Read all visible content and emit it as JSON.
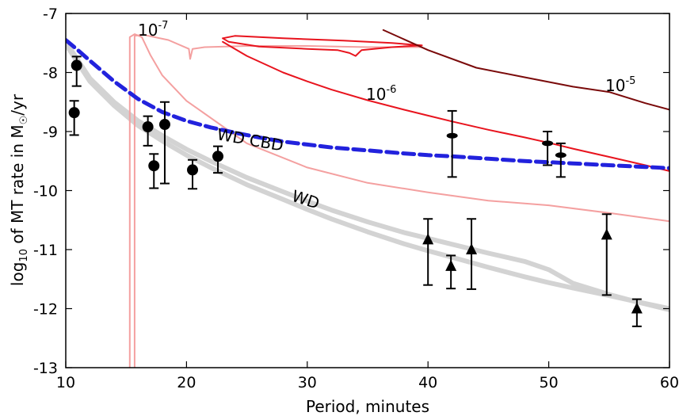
{
  "chart_data": {
    "type": "scatter",
    "xlabel": "Period, minutes",
    "ylabel": {
      "pre": "log",
      "sub": "10",
      "post": " of MT rate in M",
      "solar_symbol": "☉",
      "unit": "/yr"
    },
    "xlim": [
      10,
      60
    ],
    "ylim": [
      -13,
      -7
    ],
    "x_ticks": [
      10,
      20,
      30,
      40,
      50,
      60
    ],
    "y_ticks": [
      -13,
      -12,
      -11,
      -10,
      -9,
      -8,
      -7
    ],
    "grid": false,
    "colors": {
      "axes": "#000000",
      "wd": "#d3d3d3",
      "wd_cbd": "#2222dd",
      "rate_1e7": "#f4a0a0",
      "rate_1e6": "#e8141e",
      "rate_1e5": "#7a0a0a",
      "points": "#000000"
    },
    "curve_labels": {
      "wd": "WD",
      "wd_cbd": "WD CBD",
      "rate_1e7": {
        "base": "10",
        "exp": "-7"
      },
      "rate_1e6": {
        "base": "10",
        "exp": "-6"
      },
      "rate_1e5": {
        "base": "10",
        "exp": "-5"
      }
    },
    "series": [
      {
        "key": "wd_1",
        "style": "thick-gray",
        "x": [
          10,
          12,
          14,
          16,
          18,
          20,
          22,
          25,
          28,
          30,
          32,
          35,
          38,
          40,
          42,
          45,
          48,
          50,
          52,
          55,
          57,
          60
        ],
        "y": [
          -7.48,
          -8.1,
          -8.5,
          -8.82,
          -9.07,
          -9.3,
          -9.5,
          -9.78,
          -10.02,
          -10.18,
          -10.33,
          -10.53,
          -10.71,
          -10.81,
          -10.91,
          -11.06,
          -11.2,
          -11.34,
          -11.57,
          -11.76,
          -11.87,
          -12.02
        ]
      },
      {
        "key": "wd_2",
        "style": "thick-gray",
        "x": [
          10,
          12,
          14,
          16,
          18,
          20,
          22,
          25,
          28,
          30,
          32,
          35,
          38,
          40,
          42,
          45,
          48,
          50,
          52,
          55,
          57,
          60
        ],
        "y": [
          -7.52,
          -8.15,
          -8.56,
          -8.9,
          -9.16,
          -9.4,
          -9.61,
          -9.9,
          -10.15,
          -10.32,
          -10.48,
          -10.7,
          -10.9,
          -11.02,
          -11.13,
          -11.3,
          -11.46,
          -11.56,
          -11.65,
          -11.78,
          -11.87,
          -12.0
        ]
      },
      {
        "key": "wd_cbd",
        "style": "dashed-blue",
        "x": [
          10,
          11,
          12,
          14,
          16,
          18,
          20,
          22,
          24,
          26,
          28,
          30,
          32,
          35,
          38,
          40,
          42,
          45,
          48,
          50,
          52,
          55,
          58,
          60
        ],
        "y": [
          -7.45,
          -7.62,
          -7.8,
          -8.15,
          -8.45,
          -8.67,
          -8.82,
          -8.93,
          -9.02,
          -9.1,
          -9.17,
          -9.22,
          -9.27,
          -9.32,
          -9.37,
          -9.4,
          -9.42,
          -9.46,
          -9.5,
          -9.52,
          -9.54,
          -9.57,
          -9.6,
          -9.62
        ]
      },
      {
        "key": "rate_1e6",
        "style": "red",
        "x": [
          23,
          25,
          28,
          30,
          32,
          35,
          38,
          40,
          42,
          45,
          48,
          50,
          52,
          55,
          58,
          60
        ],
        "y": [
          -7.48,
          -7.72,
          -8.0,
          -8.15,
          -8.29,
          -8.47,
          -8.63,
          -8.73,
          -8.83,
          -8.97,
          -9.1,
          -9.19,
          -9.29,
          -9.43,
          -9.57,
          -9.67
        ]
      },
      {
        "key": "rate_1e6_loop",
        "style": "red",
        "x": [
          23,
          23.5,
          26,
          30,
          32.5,
          33.5,
          34,
          34.5,
          37,
          39.5,
          37,
          33,
          28,
          24,
          23
        ],
        "y": [
          -7.42,
          -7.48,
          -7.56,
          -7.6,
          -7.62,
          -7.67,
          -7.72,
          -7.62,
          -7.57,
          -7.54,
          -7.5,
          -7.46,
          -7.42,
          -7.38,
          -7.42
        ]
      },
      {
        "key": "rate_1e5",
        "style": "dark-red",
        "x": [
          36.3,
          40,
          44,
          48,
          52,
          55,
          58,
          60
        ],
        "y": [
          -7.28,
          -7.62,
          -7.92,
          -8.08,
          -8.24,
          -8.33,
          -8.52,
          -8.63
        ]
      },
      {
        "key": "rate_1e7_a",
        "style": "pink",
        "x": [
          15.3,
          15.3,
          15.7,
          16.3,
          17,
          18,
          20,
          25,
          30,
          35,
          40,
          45,
          50,
          55,
          60
        ],
        "y": [
          -13,
          -7.4,
          -7.35,
          -7.4,
          -7.7,
          -8.05,
          -8.48,
          -9.2,
          -9.61,
          -9.87,
          -10.03,
          -10.17,
          -10.25,
          -10.38,
          -10.52
        ]
      },
      {
        "key": "rate_1e7_b",
        "style": "pink",
        "x": [
          15.7,
          15.7,
          16.4,
          18.5,
          20.2,
          20.3,
          20.5,
          21.5,
          25,
          30,
          35,
          39.5
        ],
        "y": [
          -13,
          -7.38,
          -7.36,
          -7.45,
          -7.6,
          -7.77,
          -7.6,
          -7.57,
          -7.55,
          -7.55,
          -7.57,
          -7.57
        ]
      }
    ],
    "circle_points": [
      {
        "x": 10.9,
        "y": -7.88,
        "yerr_lo": 0.35,
        "yerr_hi": 0.15
      },
      {
        "x": 10.7,
        "y": -8.68,
        "yerr_lo": 0.38,
        "yerr_hi": 0.2
      },
      {
        "x": 16.8,
        "y": -8.92,
        "yerr_lo": 0.32,
        "yerr_hi": 0.18
      },
      {
        "x": 17.3,
        "y": -9.58,
        "yerr_lo": 0.38,
        "yerr_hi": 0.2
      },
      {
        "x": 18.2,
        "y": -8.88,
        "yerr_lo": 1.0,
        "yerr_hi": 0.38
      },
      {
        "x": 20.5,
        "y": -9.65,
        "yerr_lo": 0.32,
        "yerr_hi": 0.17
      },
      {
        "x": 22.6,
        "y": -9.42,
        "yerr_lo": 0.28,
        "yerr_hi": 0.17
      }
    ],
    "ellipse_points": [
      {
        "x": 42.0,
        "y": -9.07,
        "yerr_lo": 0.7,
        "yerr_hi": 0.42
      },
      {
        "x": 49.9,
        "y": -9.2,
        "yerr_lo": 0.37,
        "yerr_hi": 0.2
      },
      {
        "x": 51.0,
        "y": -9.4,
        "yerr_lo": 0.37,
        "yerr_hi": 0.2
      }
    ],
    "triangle_points": [
      {
        "x": 40.0,
        "y": -10.83,
        "yerr_lo": 0.77,
        "yerr_hi": 0.35
      },
      {
        "x": 41.9,
        "y": -11.28,
        "yerr_lo": 0.38,
        "yerr_hi": 0.18
      },
      {
        "x": 43.6,
        "y": -11.0,
        "yerr_lo": 0.67,
        "yerr_hi": 0.52
      },
      {
        "x": 54.8,
        "y": -10.75,
        "yerr_lo": 1.02,
        "yerr_hi": 0.35
      },
      {
        "x": 57.3,
        "y": -12.0,
        "yerr_lo": 0.3,
        "yerr_hi": 0.16
      }
    ]
  }
}
